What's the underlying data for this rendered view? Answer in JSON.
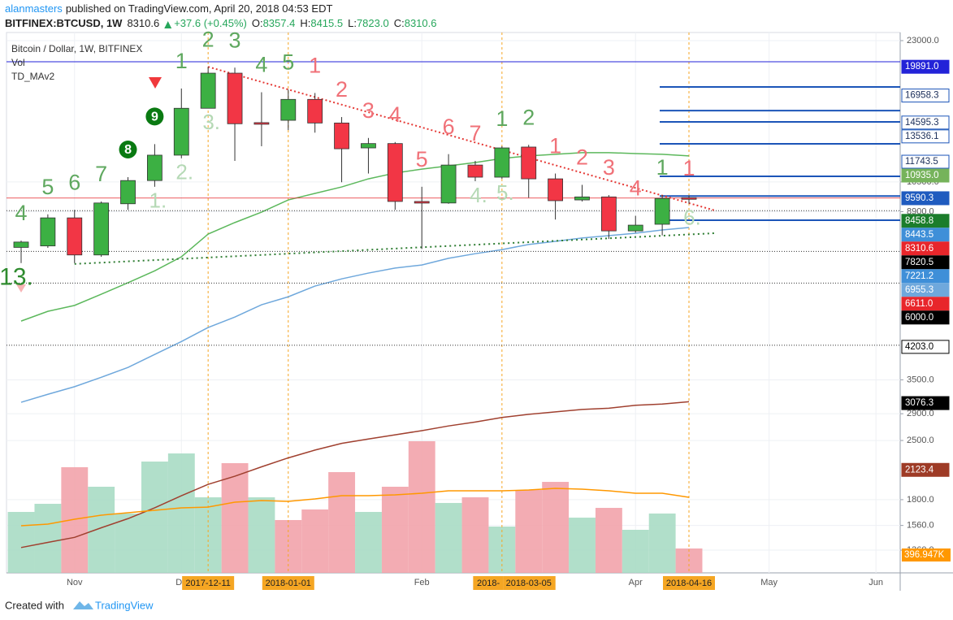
{
  "header": {
    "author": "alanmasters",
    "published": "published on TradingView.com, April 20, 2018 04:53 EDT",
    "symbol": "BITFINEX:BTCUSD, 1W",
    "last": "8310.6",
    "change": "+37.6 (+0.45%)",
    "ohlc": [
      {
        "key": "O:",
        "value": "8357.4"
      },
      {
        "key": "H:",
        "value": "8415.5"
      },
      {
        "key": "L:",
        "value": "7823.0"
      },
      {
        "key": "C:",
        "value": "8310.6"
      }
    ]
  },
  "legend": [
    "Bitcoin / Dollar, 1W, BITFINEX",
    "Vol",
    "TD_MAv2"
  ],
  "footer": {
    "created": "Created with",
    "brand": "TradingView"
  },
  "chart_data": {
    "type": "candlestick",
    "log_scale": true,
    "grid": true,
    "ylim": [
      1199,
      24060
    ],
    "yticks": [
      {
        "value": 23000,
        "label": "23000.0"
      },
      {
        "value": 10500,
        "label": "10500.0"
      },
      {
        "value": 8900,
        "label": "8900.0"
      },
      {
        "value": 3500,
        "label": "3500.0"
      },
      {
        "value": 2900,
        "label": "2900.0"
      },
      {
        "value": 2500,
        "label": "2500.0"
      },
      {
        "value": 1800,
        "label": "1800.0"
      },
      {
        "value": 1560,
        "label": "1560.0"
      },
      {
        "value": 1360,
        "label": "1360.0"
      }
    ],
    "x_labels": [
      null,
      null,
      "Nov",
      null,
      null,
      null,
      "De",
      null,
      null,
      null,
      null,
      null,
      null,
      null,
      null,
      "Feb",
      null,
      null,
      null,
      null,
      null,
      null,
      null,
      "Apr",
      null,
      null,
      null,
      null,
      "May",
      null,
      null,
      null,
      "Jun"
    ],
    "date_markers": [
      null,
      null,
      null,
      null,
      null,
      null,
      null,
      "2017-12-11",
      null,
      null,
      "2018-01-01",
      null,
      null,
      null,
      null,
      null,
      null,
      null,
      "2018-",
      {
        "label": "2018-03-05"
      },
      null,
      null,
      null,
      null,
      null,
      "2018-04-16"
    ],
    "up_color": "#3cb043",
    "down_color": "#f23645",
    "open": [
      7300,
      7360,
      8600,
      7000,
      9300,
      10580,
      12180,
      15800,
      19200,
      14590,
      14780,
      16600,
      14560,
      12680,
      12990,
      9420,
      9340,
      11530,
      10780,
      12740,
      10680,
      9500,
      9660,
      8000,
      8300,
      9620
    ],
    "high": [
      7580,
      8770,
      8990,
      9420,
      10780,
      12950,
      17630,
      19891,
      19800,
      17270,
      17530,
      17200,
      15050,
      13400,
      13100,
      10220,
      12250,
      11800,
      12800,
      12900,
      11000,
      10330,
      9760,
      8700,
      9760,
      9720
    ],
    "low": [
      6690,
      7280,
      6690,
      6930,
      8990,
      10220,
      11970,
      15800,
      11800,
      12800,
      14000,
      13800,
      10480,
      11000,
      8990,
      7240,
      9300,
      10540,
      10680,
      9620,
      8520,
      9420,
      7650,
      7920,
      7800,
      9300
    ],
    "close": [
      7520,
      8600,
      7000,
      9340,
      10580,
      12180,
      15800,
      19200,
      14500,
      14500,
      16600,
      14560,
      12620,
      12990,
      9420,
      9340,
      11530,
      10780,
      12680,
      10680,
      9460,
      9660,
      8000,
      8260,
      9580,
      9540
    ],
    "volume": {
      "name": "Vol",
      "vlim": [
        0,
        8796
      ],
      "values": [
        992,
        1124,
        1720,
        1402,
        966,
        1812,
        1944,
        1230,
        1786,
        1230,
        860,
        1032,
        1640,
        992,
        1402,
        2143,
        1138,
        1230,
        754,
        1349,
        1481,
        899,
        1058,
        701,
        966,
        396.947
      ],
      "colors": [
        "#a8dcc4",
        "#a8dcc4",
        "#f2a3ab",
        "#a8dcc4",
        "#a8dcc4",
        "#a8dcc4",
        "#a8dcc4",
        "#a8dcc4",
        "#f2a3ab",
        "#a8dcc4",
        "#f2a3ab",
        "#f2a3ab",
        "#f2a3ab",
        "#a8dcc4",
        "#f2a3ab",
        "#f2a3ab",
        "#a8dcc4",
        "#f2a3ab",
        "#a8dcc4",
        "#f2a3ab",
        "#f2a3ab",
        "#a8dcc4",
        "#f2a3ab",
        "#a8dcc4",
        "#a8dcc4",
        "#f2a3ab"
      ],
      "last_label": {
        "value": 396.947,
        "label": "396.947K",
        "bg": "#ff9800"
      }
    },
    "ma_series": [
      {
        "color": "#5cb85c",
        "values": [
          4850,
          5120,
          5290,
          5630,
          6000,
          6410,
          6930,
          7860,
          8380,
          8880,
          9500,
          9850,
          10210,
          10680,
          11030,
          11270,
          11480,
          11690,
          11960,
          12130,
          12240,
          12350,
          12350,
          12290,
          12240,
          12130
        ]
      },
      {
        "color": "#6fa8dc",
        "values": [
          3090,
          3230,
          3370,
          3550,
          3750,
          4030,
          4330,
          4680,
          4960,
          5310,
          5550,
          5890,
          6130,
          6330,
          6510,
          6620,
          6870,
          7050,
          7210,
          7420,
          7550,
          7690,
          7790,
          7900,
          8040,
          8150
        ]
      },
      {
        "color": "#a0402f",
        "values": [
          1380,
          1420,
          1460,
          1540,
          1620,
          1720,
          1840,
          1960,
          2050,
          2160,
          2270,
          2370,
          2460,
          2520,
          2580,
          2640,
          2710,
          2770,
          2840,
          2890,
          2930,
          2970,
          2990,
          3040,
          3060,
          3100
        ]
      },
      {
        "color": "#ff9800",
        "axis": "volume",
        "values": [
          767,
          794,
          873,
          939,
          979,
          1019,
          1058,
          1071,
          1151,
          1177,
          1164,
          1204,
          1257,
          1257,
          1270,
          1296,
          1336,
          1336,
          1336,
          1349,
          1376,
          1362,
          1336,
          1296,
          1296,
          1230
        ]
      }
    ],
    "levels": {
      "color": "#1c55b8",
      "values": [
        17790,
        15600,
        14650,
        12970,
        10830,
        9710,
        8490
      ]
    },
    "top_level": {
      "color": "#2323d8",
      "value": 20450
    },
    "red_level": {
      "color": "#e8262b",
      "value": 9600
    },
    "dotted_levels": {
      "color": "#333333",
      "values": [
        8950,
        7140,
        5990,
        4240
      ]
    },
    "trendlines": [
      {
        "color": "#e53935",
        "from": [
          7,
          19891
        ],
        "to": [
          26,
          8950
        ]
      },
      {
        "color": "#2e7d32",
        "from": [
          2,
          6660
        ],
        "to": [
          26,
          7900
        ]
      }
    ],
    "td_above": [
      {
        "text": "4",
        "color": "#5fa85f"
      },
      {
        "text": "5",
        "color": "#5fa85f"
      },
      {
        "text": "6",
        "color": "#5fa85f"
      },
      {
        "text": "7",
        "color": "#5fa85f"
      },
      null,
      null,
      {
        "text": "1",
        "color": "#5fa85f"
      },
      {
        "text": "2",
        "color": "#5fa85f"
      },
      {
        "text": "3",
        "color": "#5fa85f"
      },
      {
        "text": "4",
        "color": "#5fa85f"
      },
      {
        "text": "5",
        "color": "#5fa85f"
      },
      {
        "text": "1",
        "color": "#f07178"
      },
      {
        "text": "2",
        "color": "#f07178"
      },
      {
        "text": "3",
        "color": "#f07178"
      },
      {
        "text": "4",
        "color": "#f07178"
      },
      {
        "text": "5",
        "color": "#f07178"
      },
      {
        "text": "6",
        "color": "#f07178"
      },
      {
        "text": "7",
        "color": "#f07178"
      },
      {
        "text": "1",
        "color": "#5fa85f"
      },
      {
        "text": "2",
        "color": "#5fa85f"
      },
      {
        "text": "1",
        "color": "#f07178"
      },
      {
        "text": "2",
        "color": "#f07178"
      },
      {
        "text": "3",
        "color": "#f07178"
      },
      {
        "text": "4",
        "color": "#f07178"
      },
      {
        "text": "1",
        "color": "#5fa85f"
      },
      {
        "text": "1",
        "color": "#f07178"
      }
    ],
    "td_below": [
      {
        "text": "13.",
        "color": "#2e8b2e"
      },
      null,
      null,
      null,
      null,
      {
        "text": "1.",
        "color": "#b5d9b5"
      },
      {
        "text": "2.",
        "color": "#b5d9b5"
      },
      {
        "text": "3.",
        "color": "#b5d9b5"
      },
      null,
      null,
      null,
      null,
      null,
      null,
      null,
      null,
      null,
      {
        "text": "4.",
        "color": "#b5d9b5"
      },
      {
        "text": "5.",
        "color": "#b5d9b5"
      },
      null,
      null,
      null,
      null,
      null,
      null,
      {
        "text": "6.",
        "color": "#b5d9b5"
      }
    ],
    "td_circles": [
      null,
      null,
      null,
      null,
      "8",
      "9",
      null,
      null,
      null,
      null,
      null,
      null,
      null,
      null,
      null,
      null,
      null,
      null,
      null,
      null,
      null,
      null,
      null,
      null,
      null,
      null
    ],
    "price_labels": [
      {
        "value": 19891,
        "label": "19891.0",
        "bg": "#2323d8",
        "fg": "#ffffff"
      },
      {
        "value": 16958.3,
        "label": "16958.3",
        "bg": "#ffffff",
        "fg": "#1c2f5a",
        "border": "#1c55b8"
      },
      {
        "value": 14595.3,
        "label": "14595.3",
        "bg": "#ffffff",
        "fg": "#1c2f5a",
        "border": "#1c55b8"
      },
      {
        "value": 13536.1,
        "label": "13536.1",
        "bg": "#ffffff",
        "fg": "#1c2f5a",
        "border": "#1c55b8"
      },
      {
        "value": 11743.5,
        "label": "11743.5",
        "bg": "#ffffff",
        "fg": "#1c2f5a",
        "border": "#1c55b8"
      },
      {
        "value": 10935,
        "label": "10935.0",
        "bg": "#76b35b",
        "fg": "#ffffff"
      },
      {
        "value": 9590.3,
        "label": "9590.3",
        "bg": "#1f5bbf",
        "fg": "#ffffff"
      },
      {
        "value": 8458.8,
        "label": "8458.8",
        "bg": "#1b7d2b",
        "fg": "#ffffff"
      },
      {
        "value": 8443.5,
        "label": "8443.5",
        "bg": "#3f8fd8",
        "fg": "#ffffff"
      },
      {
        "value": 8310.6,
        "label": "8310.6",
        "bg": "#e8262b",
        "fg": "#ffffff"
      },
      {
        "value": 7820.5,
        "label": "7820.5",
        "bg": "#000000",
        "fg": "#ffffff"
      },
      {
        "value": 7221.2,
        "label": "7221.2",
        "bg": "#3f8fd8",
        "fg": "#ffffff"
      },
      {
        "value": 6955.3,
        "label": "6955.3",
        "bg": "#6fa8dc",
        "fg": "#ffffff"
      },
      {
        "value": 6611,
        "label": "6611.0",
        "bg": "#e8262b",
        "fg": "#ffffff"
      },
      {
        "value": 6000,
        "label": "6000.0",
        "bg": "#000000",
        "fg": "#ffffff"
      },
      {
        "value": 4203,
        "label": "4203.0",
        "bg": "#ffffff",
        "fg": "#000000",
        "border": "#000000"
      },
      {
        "value": 3076.3,
        "label": "3076.3",
        "bg": "#000000",
        "fg": "#ffffff"
      },
      {
        "value": 2123.4,
        "label": "2123.4",
        "bg": "#9e3b26",
        "fg": "#ffffff"
      }
    ]
  }
}
